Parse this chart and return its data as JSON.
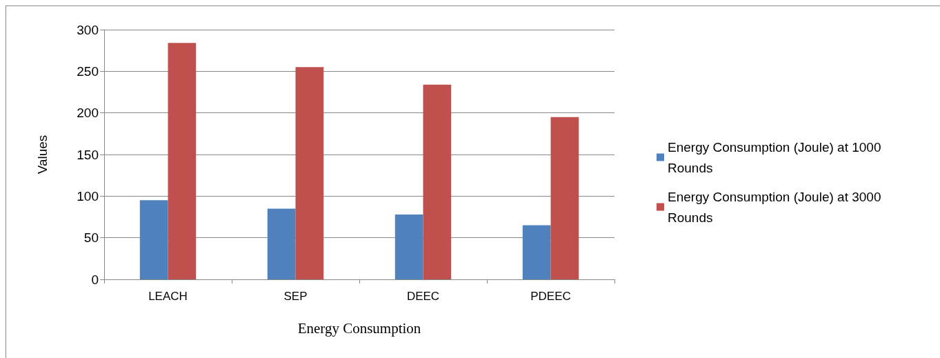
{
  "chart_data": {
    "type": "bar",
    "xlabel": "Energy Consumption",
    "ylabel": "Values",
    "categories": [
      "LEACH",
      "SEP",
      "DEEC",
      "PDEEC"
    ],
    "series": [
      {
        "name": "Energy Consumption (Joule) at 1000 Rounds",
        "color": "#4f81bd",
        "values": [
          95,
          85,
          78,
          65
        ]
      },
      {
        "name": "Energy Consumption (Joule) at 3000 Rounds",
        "color": "#c0504d",
        "values": [
          284,
          255,
          234,
          195
        ]
      }
    ],
    "ylim": [
      0,
      300
    ],
    "yticks": [
      0,
      50,
      100,
      150,
      200,
      250,
      300
    ],
    "grid": "y",
    "legend": "right"
  }
}
